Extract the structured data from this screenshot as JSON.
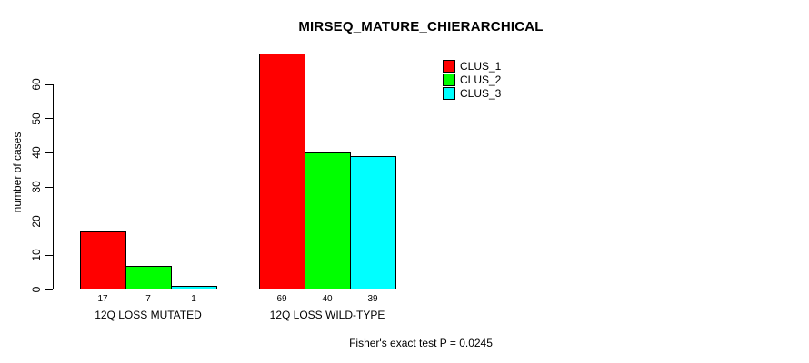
{
  "title": "MIRSEQ_MATURE_CHIERARCHICAL",
  "footer": "Fisher's exact test P = 0.0245",
  "y_axis": {
    "label": "number of cases",
    "ticks": [
      "0",
      "10",
      "20",
      "30",
      "40",
      "50",
      "60"
    ]
  },
  "legend": {
    "items": [
      {
        "label": "CLUS_1",
        "color": "#FF0000"
      },
      {
        "label": "CLUS_2",
        "color": "#00FF00"
      },
      {
        "label": "CLUS_3",
        "color": "#00FFFF"
      }
    ]
  },
  "chart_data": {
    "type": "bar",
    "title": "MIRSEQ_MATURE_CHIERARCHICAL",
    "xlabel": "",
    "ylabel": "number of cases",
    "ylim": [
      0,
      60
    ],
    "yticks": [
      0,
      10,
      20,
      30,
      40,
      50,
      60
    ],
    "grid": false,
    "legend_position": "top-right",
    "categories": [
      "12Q LOSS MUTATED",
      "12Q LOSS WILD-TYPE"
    ],
    "series": [
      {
        "name": "CLUS_1",
        "color": "#FF0000",
        "values": [
          17,
          69
        ]
      },
      {
        "name": "CLUS_2",
        "color": "#00FF00",
        "values": [
          7,
          40
        ]
      },
      {
        "name": "CLUS_3",
        "color": "#00FFFF",
        "values": [
          1,
          39
        ]
      }
    ],
    "bar_value_labels": [
      [
        17,
        7,
        1
      ],
      [
        69,
        40,
        39
      ]
    ],
    "annotation": "Fisher's exact test P = 0.0245"
  }
}
